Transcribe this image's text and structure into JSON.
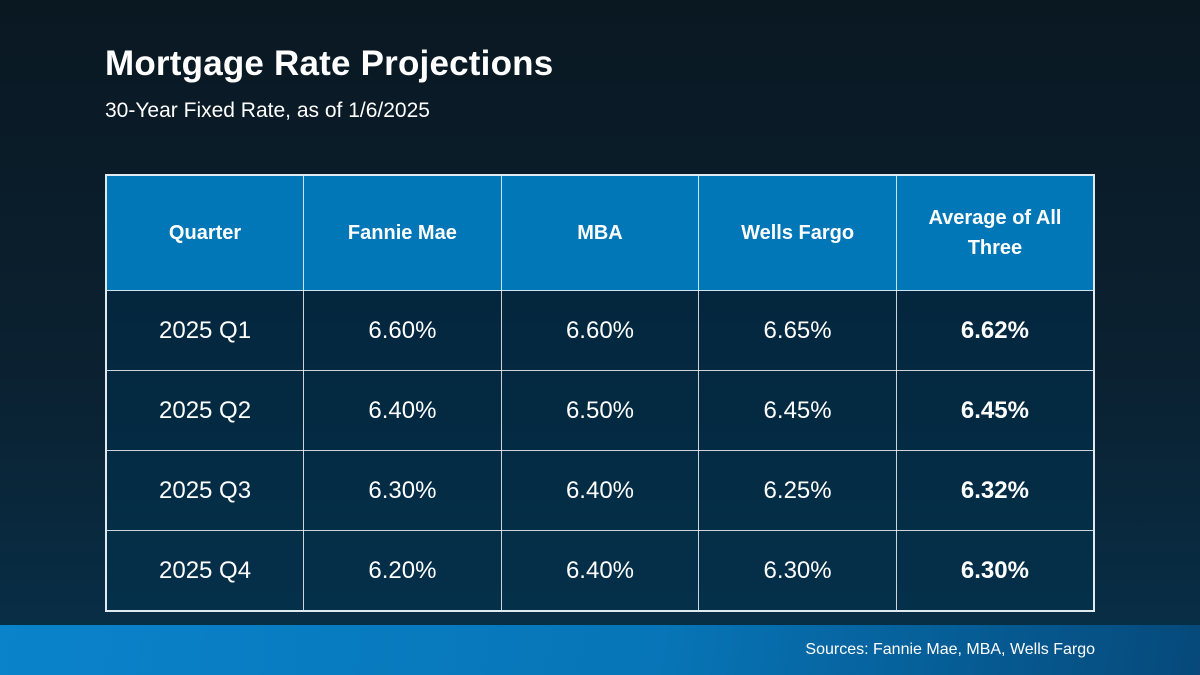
{
  "page": {
    "title": "Mortgage Rate Projections",
    "subtitle": "30-Year Fixed Rate, as of 1/6/2025",
    "source_note": "Sources: Fannie Mae, MBA, Wells Fargo"
  },
  "chart_data": {
    "type": "table",
    "title": "Mortgage Rate Projections",
    "subtitle": "30-Year Fixed Rate, as of 1/6/2025",
    "columns": [
      "Quarter",
      "Fannie Mae",
      "MBA",
      "Wells Fargo",
      "Average of All Three"
    ],
    "rows": [
      [
        "2025 Q1",
        "6.60%",
        "6.60%",
        "6.65%",
        "6.62%"
      ],
      [
        "2025 Q2",
        "6.40%",
        "6.50%",
        "6.45%",
        "6.45%"
      ],
      [
        "2025 Q3",
        "6.30%",
        "6.40%",
        "6.25%",
        "6.32%"
      ],
      [
        "2025 Q4",
        "6.20%",
        "6.40%",
        "6.30%",
        "6.30%"
      ]
    ],
    "emphasized_column_index": 4,
    "source": "Sources: Fannie Mae, MBA, Wells Fargo",
    "layout": {
      "header_style": "solid blue band, white bold text",
      "body_style": "dark navy cells, white text, light grid lines",
      "last_column_bold": true
    }
  },
  "colors": {
    "slide_background_top": "#0a1822",
    "slide_background_bottom": "#07304a",
    "header_background": "#0277b8",
    "body_background_top": "#032339",
    "body_background_bottom": "#05304a",
    "grid_line": "#dfe9ef",
    "footer_bar_left": "#0a83cb",
    "footer_bar_right": "#06497a",
    "text": "#ffffff"
  }
}
